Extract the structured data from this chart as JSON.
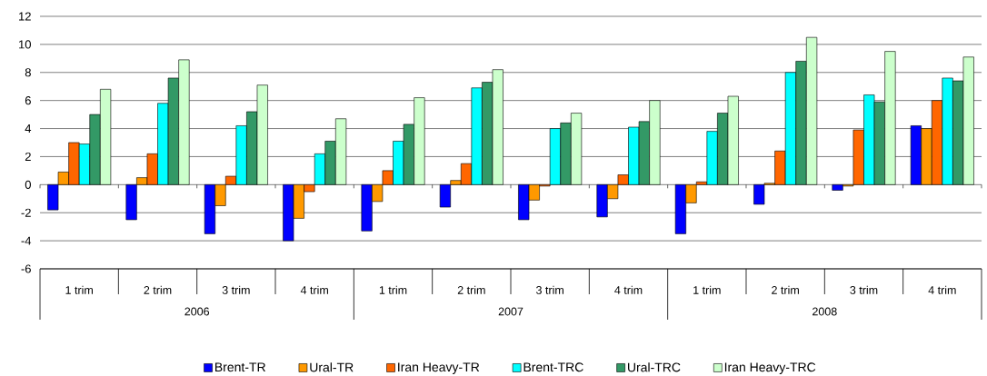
{
  "chart_data": {
    "type": "bar",
    "categories": [
      "1 trim",
      "2 trim",
      "3 trim",
      "4 trim",
      "1 trim",
      "2 trim",
      "3 trim",
      "4 trim",
      "1 trim",
      "2 trim",
      "3 trim",
      "4 trim"
    ],
    "series": [
      {
        "name": "Brent-TR",
        "color": "#0000ff",
        "values": [
          -1.8,
          -2.5,
          -3.5,
          -4.0,
          -3.3,
          -1.6,
          -2.5,
          -2.3,
          -3.5,
          -1.4,
          -0.4,
          4.2
        ]
      },
      {
        "name": "Ural-TR",
        "color": "#ff9900",
        "values": [
          0.9,
          0.5,
          -1.5,
          -2.4,
          -1.2,
          0.3,
          -1.1,
          -1.0,
          -1.3,
          0.1,
          -0.1,
          4.0
        ]
      },
      {
        "name": "Iran Heavy-TR",
        "color": "#ff6600",
        "values": [
          3.0,
          2.2,
          0.6,
          -0.5,
          1.0,
          1.5,
          -0.1,
          0.7,
          0.2,
          2.4,
          3.9,
          6.0
        ]
      },
      {
        "name": "Brent-TRC",
        "color": "#00ffff",
        "values": [
          2.9,
          5.8,
          4.2,
          2.2,
          3.1,
          6.9,
          4.0,
          4.1,
          3.8,
          8.0,
          6.4,
          7.6
        ]
      },
      {
        "name": "Ural-TRC",
        "color": "#339966",
        "values": [
          5.0,
          7.6,
          5.2,
          3.1,
          4.3,
          7.3,
          4.4,
          4.5,
          5.1,
          8.8,
          5.9,
          7.4
        ]
      },
      {
        "name": "Iran Heavy-TRC",
        "color": "#ccffcc",
        "values": [
          6.8,
          8.9,
          7.1,
          4.7,
          6.2,
          8.2,
          5.1,
          6.0,
          6.3,
          10.5,
          9.5,
          9.1
        ]
      }
    ],
    "ylim": [
      -6,
      12
    ],
    "yticks": [
      -6,
      -4,
      -2,
      0,
      2,
      4,
      6,
      8,
      10,
      12
    ],
    "grid": "y",
    "legend": "bottom",
    "annotations": [
      "2006",
      "2007",
      "2008"
    ]
  }
}
